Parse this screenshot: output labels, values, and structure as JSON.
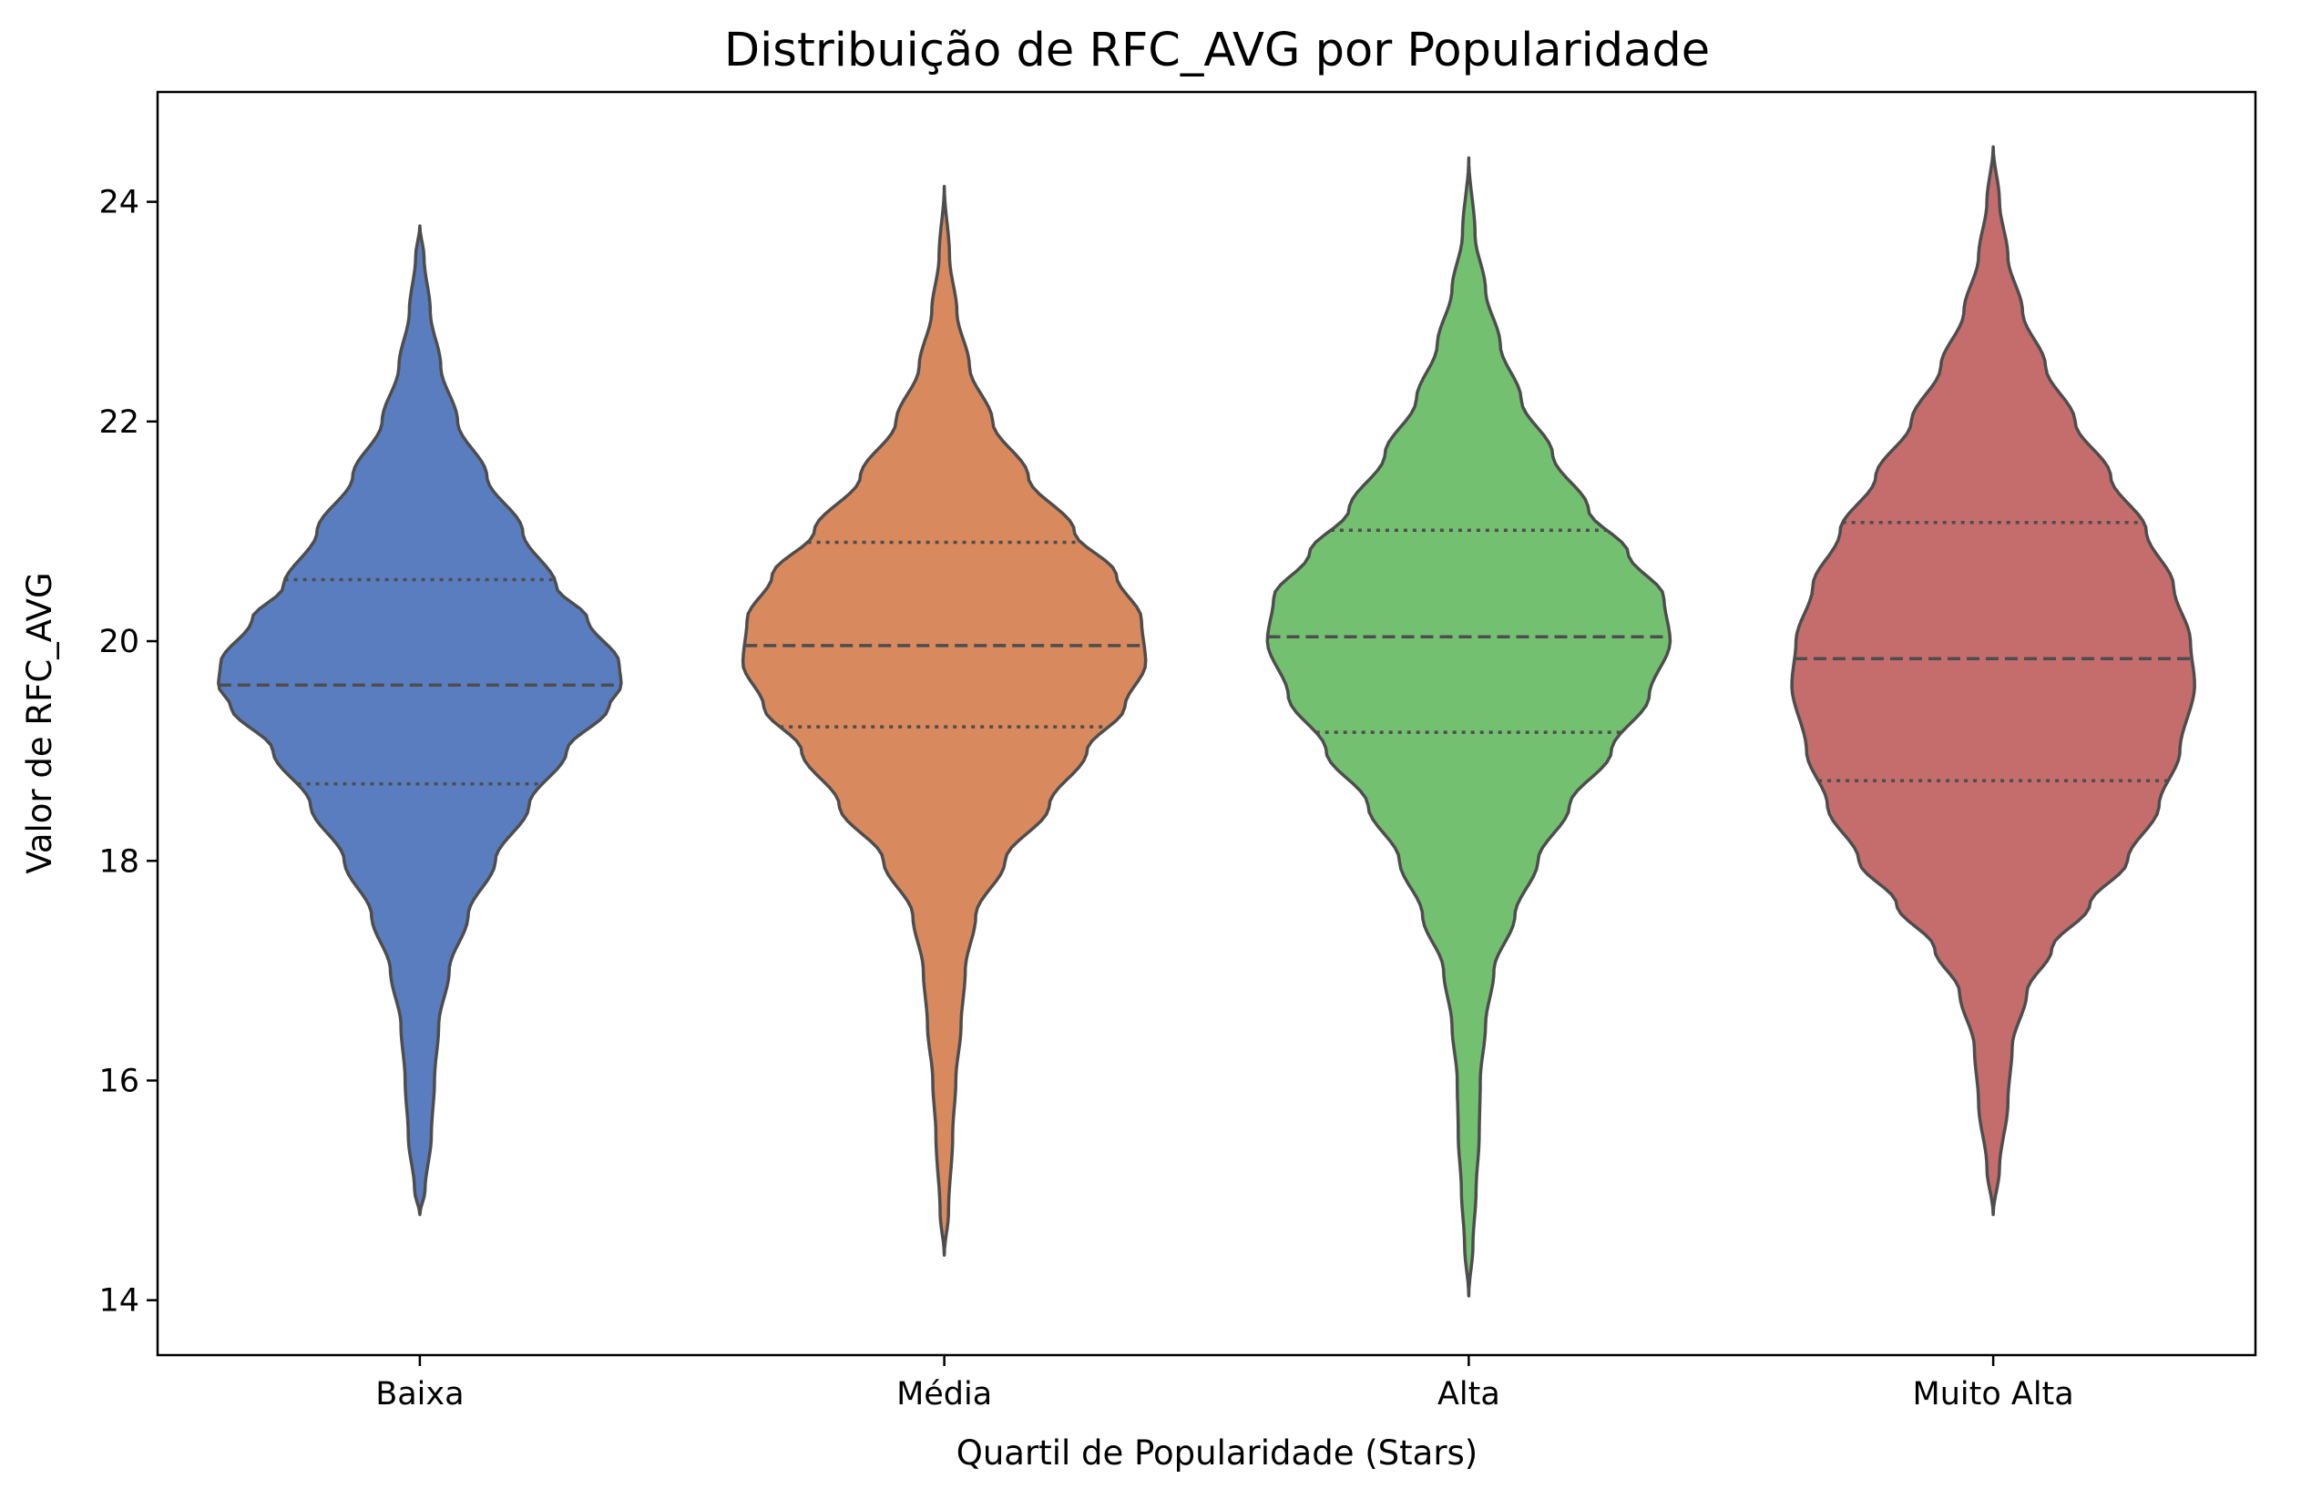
{
  "chart_data": {
    "type": "violin",
    "title": "Distribuição de RFC_AVG por Popularidade",
    "xlabel": "Quartil de Popularidade (Stars)",
    "ylabel": "Valor de RFC_AVG",
    "ylim": [
      13.5,
      25.0
    ],
    "yticks": [
      14,
      16,
      18,
      20,
      22,
      24
    ],
    "ytick_labels": [
      "14",
      "16",
      "18",
      "20",
      "22",
      "24"
    ],
    "grid": false,
    "categories": [
      "Baixa",
      "Média",
      "Alta",
      "Muito Alta"
    ],
    "colors": [
      "#5a7dbf",
      "#d8895e",
      "#74c071",
      "#c46d6c"
    ],
    "outline_color": "#4d4d4d",
    "violins": [
      {
        "category": "Baixa",
        "min": 14.78,
        "max": 23.78,
        "q1": 18.7,
        "median": 19.6,
        "q3": 20.56,
        "profile": [
          [
            14.78,
            0.0
          ],
          [
            15.0,
            0.025
          ],
          [
            15.5,
            0.055
          ],
          [
            16.0,
            0.07
          ],
          [
            16.5,
            0.09
          ],
          [
            17.0,
            0.14
          ],
          [
            17.5,
            0.23
          ],
          [
            18.0,
            0.36
          ],
          [
            18.5,
            0.52
          ],
          [
            19.0,
            0.7
          ],
          [
            19.4,
            0.9
          ],
          [
            19.6,
            0.96
          ],
          [
            19.8,
            0.95
          ],
          [
            20.2,
            0.8
          ],
          [
            20.5,
            0.65
          ],
          [
            21.0,
            0.49
          ],
          [
            21.5,
            0.32
          ],
          [
            22.0,
            0.18
          ],
          [
            22.5,
            0.1
          ],
          [
            23.0,
            0.05
          ],
          [
            23.5,
            0.02
          ],
          [
            23.78,
            0.0
          ]
        ]
      },
      {
        "category": "Média",
        "min": 14.41,
        "max": 24.14,
        "q1": 19.22,
        "median": 19.96,
        "q3": 20.9,
        "profile": [
          [
            14.41,
            0.0
          ],
          [
            14.8,
            0.02
          ],
          [
            15.5,
            0.04
          ],
          [
            16.0,
            0.055
          ],
          [
            16.5,
            0.08
          ],
          [
            17.0,
            0.1
          ],
          [
            17.5,
            0.15
          ],
          [
            18.0,
            0.29
          ],
          [
            18.5,
            0.5
          ],
          [
            19.0,
            0.68
          ],
          [
            19.4,
            0.86
          ],
          [
            19.8,
            0.96
          ],
          [
            20.2,
            0.94
          ],
          [
            20.6,
            0.82
          ],
          [
            21.0,
            0.62
          ],
          [
            21.5,
            0.4
          ],
          [
            22.0,
            0.23
          ],
          [
            22.5,
            0.12
          ],
          [
            23.0,
            0.06
          ],
          [
            23.5,
            0.025
          ],
          [
            24.14,
            0.0
          ]
        ]
      },
      {
        "category": "Alta",
        "min": 14.04,
        "max": 24.4,
        "q1": 19.17,
        "median": 20.04,
        "q3": 21.01,
        "profile": [
          [
            14.04,
            0.0
          ],
          [
            14.5,
            0.02
          ],
          [
            15.0,
            0.035
          ],
          [
            15.5,
            0.05
          ],
          [
            16.0,
            0.055
          ],
          [
            16.5,
            0.08
          ],
          [
            17.0,
            0.12
          ],
          [
            17.5,
            0.22
          ],
          [
            18.0,
            0.33
          ],
          [
            18.5,
            0.48
          ],
          [
            19.0,
            0.68
          ],
          [
            19.5,
            0.86
          ],
          [
            20.0,
            0.96
          ],
          [
            20.4,
            0.93
          ],
          [
            20.8,
            0.76
          ],
          [
            21.2,
            0.57
          ],
          [
            21.7,
            0.4
          ],
          [
            22.2,
            0.25
          ],
          [
            22.7,
            0.15
          ],
          [
            23.2,
            0.08
          ],
          [
            23.7,
            0.03
          ],
          [
            24.4,
            0.0
          ]
        ]
      },
      {
        "category": "Muito Alta",
        "min": 14.78,
        "max": 24.5,
        "q1": 18.73,
        "median": 19.84,
        "q3": 21.08,
        "profile": [
          [
            14.78,
            0.0
          ],
          [
            15.2,
            0.03
          ],
          [
            15.8,
            0.07
          ],
          [
            16.3,
            0.09
          ],
          [
            16.8,
            0.16
          ],
          [
            17.2,
            0.28
          ],
          [
            17.6,
            0.46
          ],
          [
            18.0,
            0.64
          ],
          [
            18.5,
            0.79
          ],
          [
            19.0,
            0.89
          ],
          [
            19.6,
            0.96
          ],
          [
            20.0,
            0.94
          ],
          [
            20.5,
            0.86
          ],
          [
            21.0,
            0.73
          ],
          [
            21.5,
            0.56
          ],
          [
            22.0,
            0.39
          ],
          [
            22.5,
            0.25
          ],
          [
            23.0,
            0.14
          ],
          [
            23.5,
            0.07
          ],
          [
            24.0,
            0.03
          ],
          [
            24.5,
            0.0
          ]
        ]
      }
    ]
  }
}
